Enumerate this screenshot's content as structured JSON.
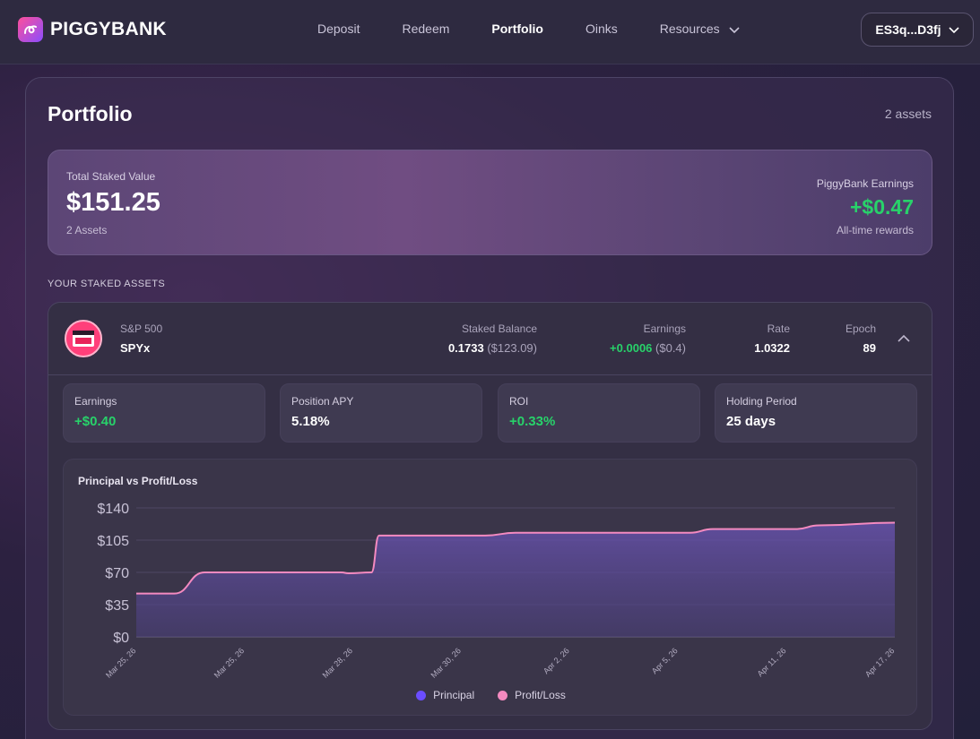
{
  "app": {
    "name": "PIGGYBANK"
  },
  "nav": [
    {
      "label": "Deposit",
      "active": false
    },
    {
      "label": "Redeem",
      "active": false
    },
    {
      "label": "Portfolio",
      "active": true
    },
    {
      "label": "Oinks",
      "active": false
    },
    {
      "label": "Resources",
      "active": false,
      "dropdown": true
    }
  ],
  "wallet": {
    "label": "ES3q...D3fj"
  },
  "portfolio": {
    "title": "Portfolio",
    "asset_count": "2 assets",
    "total_label": "Total Staked Value",
    "total_value": "$151.25",
    "total_sub": "2 Assets",
    "earnings_label": "PiggyBank Earnings",
    "earnings_value": "+$0.47",
    "earnings_sub": "All-time rewards",
    "section_label": "YOUR STAKED ASSETS"
  },
  "asset": {
    "category": "S&P 500",
    "symbol": "SPYx",
    "staked_label": "Staked Balance",
    "staked_value": "0.1733",
    "staked_usd": "($123.09)",
    "earnings_label": "Earnings",
    "earnings_value": "+0.0006",
    "earnings_usd": "($0.4)",
    "rate_label": "Rate",
    "rate_value": "1.0322",
    "epoch_label": "Epoch",
    "epoch_value": "89",
    "stats": [
      {
        "label": "Earnings",
        "value": "+$0.40",
        "positive": true
      },
      {
        "label": "Position APY",
        "value": "5.18%",
        "positive": false
      },
      {
        "label": "ROI",
        "value": "+0.33%",
        "positive": true
      },
      {
        "label": "Holding Period",
        "value": "25 days",
        "positive": false
      }
    ]
  },
  "colors": {
    "accent_positive": "#28d26a",
    "principal": "#6b4dff",
    "profit_loss": "#f48ac0"
  },
  "chart_data": {
    "type": "area",
    "title": "Principal vs Profit/Loss",
    "ylim": [
      0,
      140
    ],
    "yticks": [
      "$0",
      "$35",
      "$70",
      "$105",
      "$140"
    ],
    "xticks": [
      "Mar 25, 26",
      "Mar 25, 26",
      "Mar 28, 26",
      "Mar 30, 26",
      "Apr 2, 26",
      "Apr 5, 26",
      "Apr 11, 26",
      "Apr 17, 26"
    ],
    "grid": true,
    "legend_position": "bottom",
    "series": [
      {
        "name": "Principal",
        "color": "#6b4dff"
      },
      {
        "name": "Profit/Loss",
        "color": "#f48ac0"
      }
    ],
    "points": [
      [
        0,
        47
      ],
      [
        0.05,
        47
      ],
      [
        0.09,
        70
      ],
      [
        0.27,
        70
      ],
      [
        0.28,
        69
      ],
      [
        0.31,
        70
      ],
      [
        0.32,
        110
      ],
      [
        0.46,
        110
      ],
      [
        0.5,
        113
      ],
      [
        0.73,
        113
      ],
      [
        0.76,
        117
      ],
      [
        0.87,
        117
      ],
      [
        0.9,
        121
      ],
      [
        1.0,
        124
      ]
    ]
  }
}
